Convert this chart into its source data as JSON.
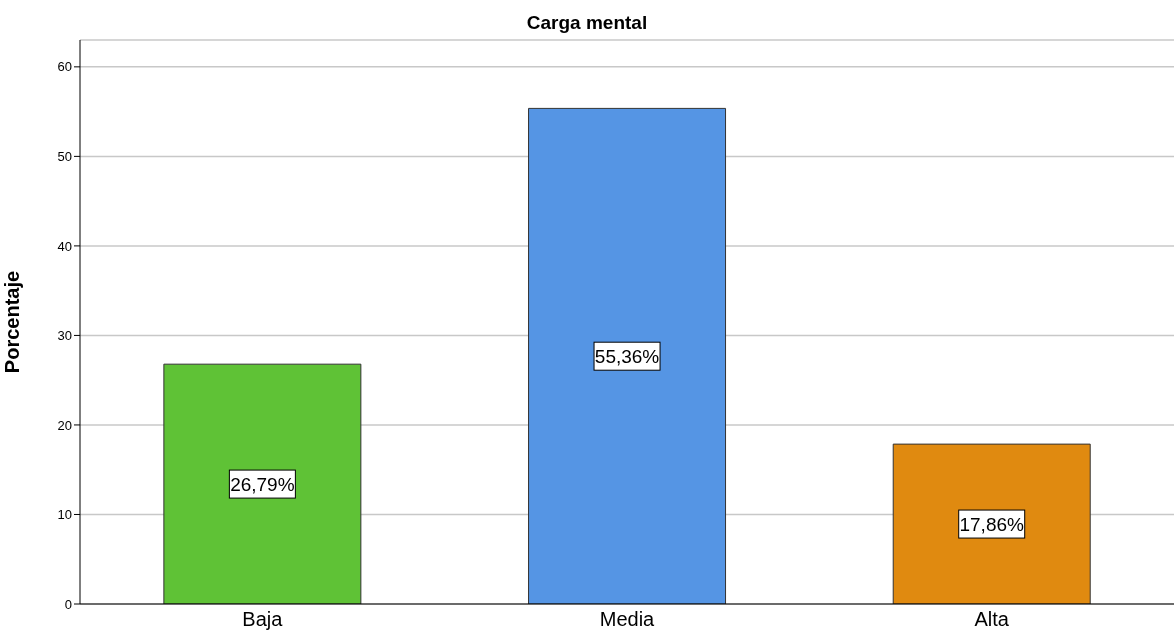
{
  "chart_data": {
    "type": "bar",
    "title": "Carga mental",
    "ylabel": "Porcentaje",
    "categories": [
      "Baja",
      "Media",
      "Alta"
    ],
    "values": [
      26.79,
      55.36,
      17.86
    ],
    "colors": [
      "#5fc236",
      "#5595e4",
      "#e08a10"
    ],
    "value_labels": [
      "26,79%",
      "55,36%",
      "17,86%"
    ],
    "ylim": [
      0,
      63
    ],
    "yticks": [
      0,
      10,
      20,
      30,
      40,
      50,
      60
    ],
    "grid": "y"
  }
}
